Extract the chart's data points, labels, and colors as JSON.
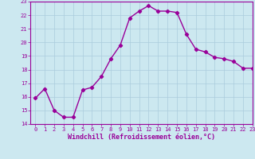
{
  "x": [
    0,
    1,
    2,
    3,
    4,
    5,
    6,
    7,
    8,
    9,
    10,
    11,
    12,
    13,
    14,
    15,
    16,
    17,
    18,
    19,
    20,
    21,
    22,
    23
  ],
  "y": [
    15.9,
    16.6,
    15.0,
    14.5,
    14.5,
    16.5,
    16.7,
    17.5,
    18.8,
    19.8,
    21.8,
    22.3,
    22.7,
    22.3,
    22.3,
    22.2,
    20.6,
    19.5,
    19.3,
    18.9,
    18.8,
    18.6,
    18.1,
    18.1
  ],
  "line_color": "#990099",
  "marker": "D",
  "marker_size": 2.2,
  "linewidth": 1.0,
  "bg_color": "#cce8f0",
  "grid_color": "#aaccdd",
  "xlabel": "Windchill (Refroidissement éolien,°C)",
  "xlabel_color": "#990099",
  "ylim": [
    14,
    23
  ],
  "xlim": [
    -0.5,
    23
  ],
  "yticks": [
    14,
    15,
    16,
    17,
    18,
    19,
    20,
    21,
    22,
    23
  ],
  "xticks": [
    0,
    1,
    2,
    3,
    4,
    5,
    6,
    7,
    8,
    9,
    10,
    11,
    12,
    13,
    14,
    15,
    16,
    17,
    18,
    19,
    20,
    21,
    22,
    23
  ],
  "tick_color": "#990099",
  "tick_fontsize": 5.0,
  "xlabel_fontsize": 6.0,
  "axis_linewidth": 0.8
}
